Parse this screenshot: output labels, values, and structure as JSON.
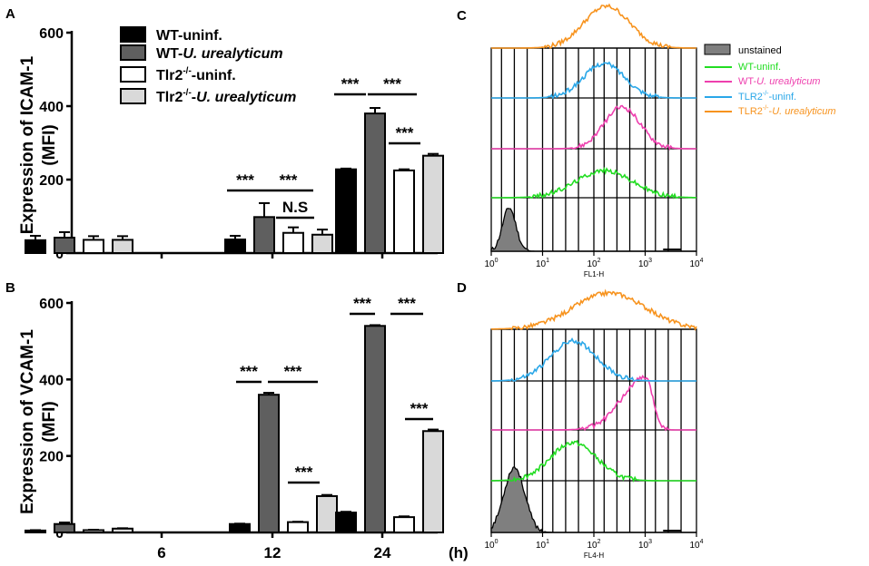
{
  "colors": {
    "wt_uninf": "#000000",
    "wt_urea": "#5f5f5f",
    "tlr2_uninf": "#ffffff",
    "tlr2_urea": "#d9d9d9",
    "unstained_fill": "#7f7f7f",
    "flow_wt_uninf": "#22dd22",
    "flow_wt_urea": "#ee3fae",
    "flow_tlr2_uninf": "#2aa7e8",
    "flow_tlr2_urea": "#f7931e"
  },
  "chart_data": [
    {
      "panel": "A",
      "type": "bar",
      "ylabel_line1": "Expression of ICAM-1",
      "ylabel_line2": "(MFI)",
      "ylim": [
        0,
        600
      ],
      "yticks": [
        "0",
        "200",
        "400",
        "600"
      ],
      "categories": [
        "6",
        "12",
        "24"
      ],
      "series": [
        {
          "name": "WT-uninf.",
          "values": [
            35,
            37,
            228
          ],
          "errors": [
            12,
            10,
            2
          ]
        },
        {
          "name": "WT-U. urealyticum",
          "values": [
            42,
            98,
            380
          ],
          "errors": [
            15,
            38,
            15
          ]
        },
        {
          "name": "Tlr2-/--uninf.",
          "values": [
            36,
            55,
            225
          ],
          "errors": [
            10,
            15,
            3
          ]
        },
        {
          "name": "Tlr2-/--U. urealyticum",
          "values": [
            36,
            50,
            265
          ],
          "errors": [
            10,
            14,
            5
          ]
        }
      ],
      "legend": [
        {
          "pre": "WT-uninf.",
          "sup": "",
          "post": "",
          "italic": ""
        },
        {
          "pre": "WT-",
          "sup": "",
          "post": "",
          "italic": "U. urealyticum"
        },
        {
          "pre": "Tlr2",
          "sup": "-/-",
          "post": "-uninf.",
          "italic": ""
        },
        {
          "pre": "Tlr2",
          "sup": "-/-",
          "post": "-",
          "italic": "U. urealyticum"
        }
      ],
      "annotations": [
        "***",
        "***",
        "N.S",
        "***",
        "***",
        "***"
      ]
    },
    {
      "panel": "B",
      "type": "bar",
      "ylabel_line1": "Expression of VCAM-1",
      "ylabel_line2": "(MFI)",
      "ylim": [
        0,
        600
      ],
      "yticks": [
        "0",
        "200",
        "400",
        "600"
      ],
      "categories": [
        "6",
        "12",
        "24"
      ],
      "xunit": "(h)",
      "series": [
        {
          "name": "WT-uninf.",
          "values": [
            5,
            22,
            52
          ],
          "errors": [
            1,
            1,
            2
          ]
        },
        {
          "name": "WT-U. urealyticum",
          "values": [
            22,
            360,
            540
          ],
          "errors": [
            4,
            5,
            2
          ]
        },
        {
          "name": "Tlr2-/--uninf.",
          "values": [
            6,
            27,
            40
          ],
          "errors": [
            1,
            1,
            2
          ]
        },
        {
          "name": "Tlr2-/--U. urealyticum",
          "values": [
            10,
            95,
            265
          ],
          "errors": [
            1,
            3,
            4
          ]
        }
      ],
      "annotations": [
        "***",
        "***",
        "***",
        "***",
        "***",
        "***"
      ]
    },
    {
      "panel": "C",
      "type": "line",
      "xlabel": "FL1-H",
      "xscale": "log",
      "xticks": [
        {
          "base": "10",
          "exp": "0"
        },
        {
          "base": "10",
          "exp": "1"
        },
        {
          "base": "10",
          "exp": "2"
        },
        {
          "base": "10",
          "exp": "3"
        },
        {
          "base": "10",
          "exp": "4"
        }
      ],
      "legend": [
        {
          "pre": "unstained",
          "sup": "",
          "post": "",
          "italic": ""
        },
        {
          "pre": "WT-uninf.",
          "sup": "",
          "post": "",
          "italic": ""
        },
        {
          "pre": "WT-",
          "sup": "",
          "post": "",
          "italic": "U. urealyticum"
        },
        {
          "pre": "TLR2",
          "sup": "-/-",
          "post": "-uninf.",
          "italic": ""
        },
        {
          "pre": "TLR2",
          "sup": "-/-",
          "post": "-",
          "italic": "U. urealyticum"
        }
      ],
      "series": [
        {
          "name": "unstained",
          "peak_log": 0.35,
          "width_log": 0.13
        },
        {
          "name": "WT-uninf.",
          "peak_log": 2.2,
          "width_log": 0.55
        },
        {
          "name": "WT-U. urealyticum",
          "peak_log": 2.55,
          "width_log": 0.35
        },
        {
          "name": "TLR2-/--uninf.",
          "peak_log": 2.2,
          "width_log": 0.4
        },
        {
          "name": "TLR2-/--U. urealyticum",
          "peak_log": 2.25,
          "width_log": 0.45
        }
      ]
    },
    {
      "panel": "D",
      "type": "line",
      "xlabel": "FL4-H",
      "xscale": "log",
      "xticks": [
        {
          "base": "10",
          "exp": "0"
        },
        {
          "base": "10",
          "exp": "1"
        },
        {
          "base": "10",
          "exp": "2"
        },
        {
          "base": "10",
          "exp": "3"
        },
        {
          "base": "10",
          "exp": "4"
        }
      ],
      "series": [
        {
          "name": "unstained",
          "peak_log": 0.45,
          "width_log": 0.2
        },
        {
          "name": "WT-uninf.",
          "peak_log": 1.6,
          "width_log": 0.45
        },
        {
          "name": "WT-U. urealyticum",
          "peak_log": 3.0,
          "width_log": 0.45
        },
        {
          "name": "TLR2-/--uninf.",
          "peak_log": 1.6,
          "width_log": 0.45
        },
        {
          "name": "TLR2-/--U. urealyticum",
          "peak_log": 2.3,
          "width_log": 0.7
        }
      ]
    }
  ]
}
